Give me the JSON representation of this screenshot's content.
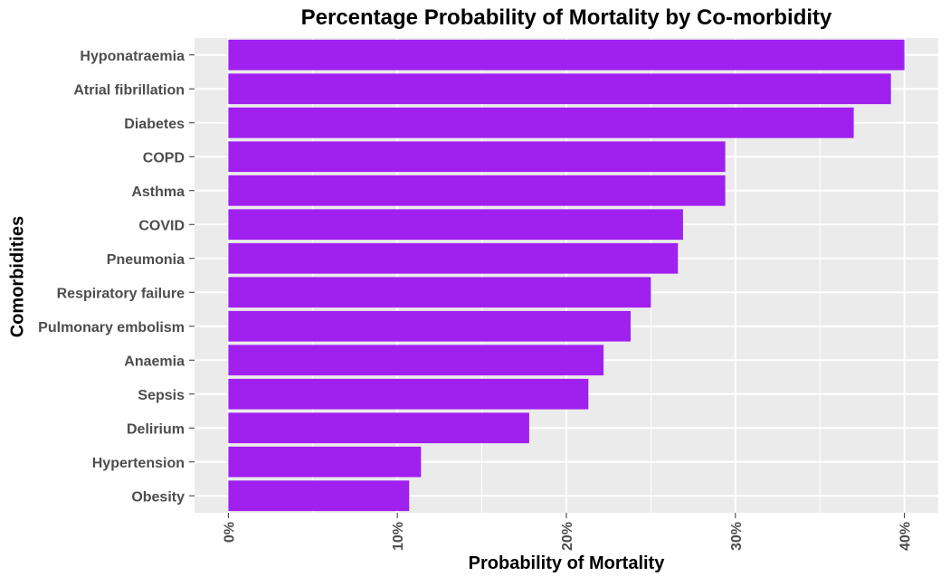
{
  "chart_data": {
    "type": "bar",
    "orientation": "horizontal",
    "title": "Percentage Probability of Mortality by Co-morbidity",
    "xlabel": "Probability of Mortality",
    "ylabel": "Comorbidities",
    "categories": [
      "Hyponatraemia",
      "Atrial fibrillation",
      "Diabetes",
      "COPD",
      "Asthma",
      "COVID",
      "Pneumonia",
      "Respiratory failure",
      "Pulmonary embolism",
      "Anaemia",
      "Sepsis",
      "Delirium",
      "Hypertension",
      "Obesity"
    ],
    "values": [
      0.4,
      0.392,
      0.37,
      0.294,
      0.294,
      0.269,
      0.266,
      0.25,
      0.238,
      0.222,
      0.213,
      0.178,
      0.114,
      0.107
    ],
    "xlim": [
      -0.02,
      0.0205
    ],
    "xticks": [
      0,
      0.1,
      0.2,
      0.3,
      0.4
    ],
    "xtick_labels": [
      "0%",
      "10%",
      "20%",
      "30%",
      "40%"
    ],
    "bar_color": "#A020F0",
    "panel_color": "#EBEBEB",
    "grid_color": "#FFFFFF",
    "grid": true,
    "legend": "none"
  }
}
